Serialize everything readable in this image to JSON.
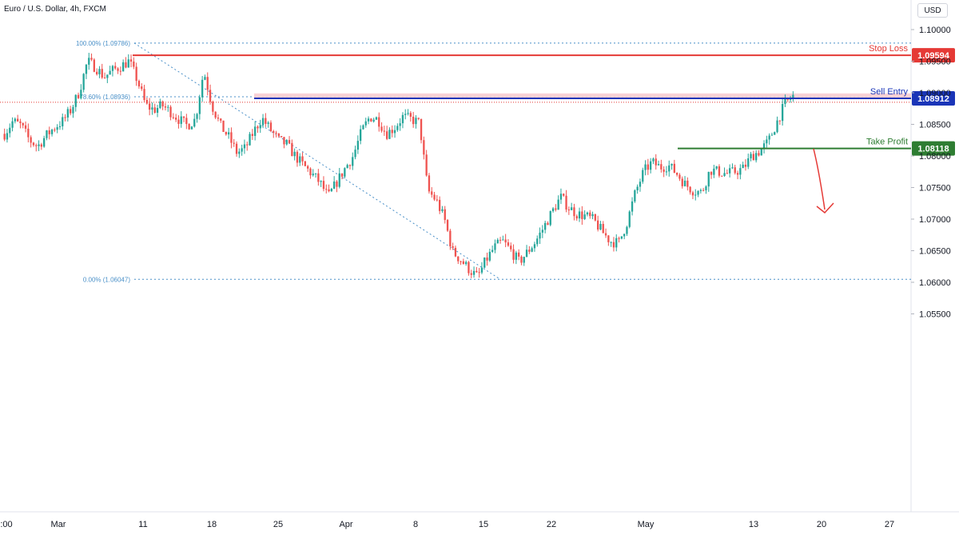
{
  "header": {
    "symbol_title": "Euro / U.S. Dollar, 4h, FXCM"
  },
  "price_scale": {
    "currency": "USD",
    "ticks": [
      "1.10000",
      "1.09500",
      "1.09000",
      "1.08500",
      "1.08000",
      "1.07500",
      "1.07000",
      "1.06500",
      "1.06000",
      "1.05500"
    ]
  },
  "time_axis": {
    "labels": [
      ":00",
      "Mar",
      "11",
      "18",
      "25",
      "Apr",
      "8",
      "15",
      "22",
      "May",
      "13",
      "20",
      "27"
    ]
  },
  "levels": {
    "stop_loss": {
      "label": "Stop Loss",
      "price": "1.09594",
      "color": "#e53935"
    },
    "sell_entry": {
      "label": "Sell Entry",
      "price": "1.08912",
      "color": "#1a35b8"
    },
    "take_profit": {
      "label": "Take Profit",
      "price": "1.08118",
      "color": "#2e7d32"
    }
  },
  "fibonacci": {
    "color": "#4a90c8",
    "labels": [
      "100.00% (1.09786)",
      "78.60% (1.08936)",
      "0.00% (1.06047)"
    ]
  },
  "colors": {
    "up": "#26a69a",
    "down": "#ef5350",
    "zone": "#f8cdd2"
  },
  "chart_data": {
    "type": "candlestick",
    "title": "Euro / U.S. Dollar, 4h, FXCM",
    "ylim": [
      1.0525,
      1.1015
    ],
    "x_axis_labels": [
      ":00",
      "Mar",
      "11",
      "18",
      "25",
      "Apr",
      "8",
      "15",
      "22",
      "May",
      "13",
      "20",
      "27"
    ],
    "series": [
      {
        "name": "price",
        "description": "approximate close path",
        "values": [
          1.0835,
          1.0855,
          1.0848,
          1.0825,
          1.0815,
          1.0832,
          1.0845,
          1.0855,
          1.0873,
          1.0902,
          1.095,
          1.094,
          1.0925,
          1.0935,
          1.0942,
          1.095,
          1.092,
          1.088,
          1.0873,
          1.088,
          1.087,
          1.0858,
          1.0848,
          1.0858,
          1.0935,
          1.088,
          1.0848,
          1.083,
          1.0805,
          1.0812,
          1.0838,
          1.086,
          1.0842,
          1.0825,
          1.0818,
          1.08,
          1.0785,
          1.0772,
          1.0758,
          1.0735,
          1.0758,
          1.078,
          1.08,
          1.0838,
          1.0862,
          1.0858,
          1.0835,
          1.0845,
          1.0862,
          1.0858,
          1.0852,
          1.0745,
          1.073,
          1.07,
          1.0648,
          1.0635,
          1.062,
          1.0608,
          1.0635,
          1.0655,
          1.0665,
          1.065,
          1.0632,
          1.0648,
          1.0665,
          1.0688,
          1.0712,
          1.0735,
          1.0718,
          1.0708,
          1.0705,
          1.0698,
          1.068,
          1.0665,
          1.0662,
          1.0695,
          1.0742,
          1.0775,
          1.079,
          1.0782,
          1.0785,
          1.0772,
          1.0755,
          1.0745,
          1.0742,
          1.0778,
          1.0775,
          1.0772,
          1.0775,
          1.078,
          1.08,
          1.0808,
          1.0822,
          1.0852,
          1.0882,
          1.0895
        ]
      }
    ],
    "price_levels": [
      {
        "name": "Stop Loss",
        "value": 1.09594
      },
      {
        "name": "Sell Entry",
        "value": 1.08912
      },
      {
        "name": "Take Profit",
        "value": 1.08118
      }
    ],
    "fib_levels": [
      {
        "pct": "100.00%",
        "value": 1.09786
      },
      {
        "pct": "78.60%",
        "value": 1.08936
      },
      {
        "pct": "0.00%",
        "value": 1.06047
      }
    ],
    "grid": false
  }
}
